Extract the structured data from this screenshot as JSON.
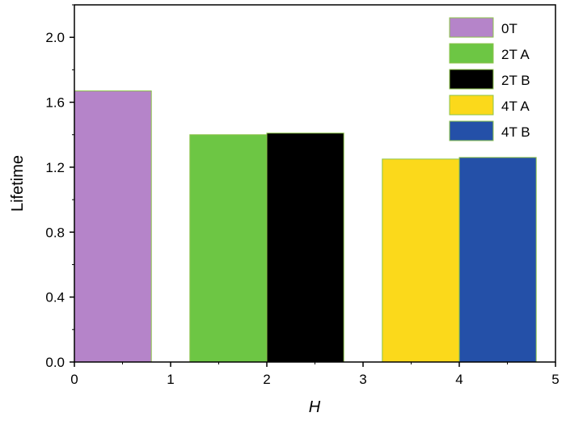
{
  "chart_data": {
    "type": "bar",
    "xlabel": "H",
    "ylabel": "Lifetime",
    "xlim": [
      0,
      5
    ],
    "ylim": [
      0,
      2.2
    ],
    "xticks": [
      "0",
      "1",
      "2",
      "3",
      "4",
      "5"
    ],
    "yticks": [
      "0.0",
      "0.4",
      "0.8",
      "1.2",
      "1.6",
      "2.0"
    ],
    "legend_position": "top-right",
    "grid": false,
    "bars": [
      {
        "name": "0T",
        "x_start": 0.0,
        "x_end": 0.8,
        "value": 1.67,
        "color": "#b584c9"
      },
      {
        "name": "2T A",
        "x_start": 1.2,
        "x_end": 2.0,
        "value": 1.4,
        "color": "#6dc644"
      },
      {
        "name": "2T B",
        "x_start": 2.0,
        "x_end": 2.8,
        "value": 1.41,
        "color": "#000000"
      },
      {
        "name": "4T A",
        "x_start": 3.2,
        "x_end": 4.0,
        "value": 1.25,
        "color": "#fbd91b"
      },
      {
        "name": "4T B",
        "x_start": 4.0,
        "x_end": 4.8,
        "value": 1.26,
        "color": "#2450a8"
      }
    ],
    "legend": [
      {
        "label": "0T",
        "color": "#b584c9"
      },
      {
        "label": "2T A",
        "color": "#6dc644"
      },
      {
        "label": "2T B",
        "color": "#000000"
      },
      {
        "label": "4T A",
        "color": "#fbd91b"
      },
      {
        "label": "4T B",
        "color": "#2450a8"
      }
    ],
    "bar_edge_color": "#8bc34a"
  }
}
